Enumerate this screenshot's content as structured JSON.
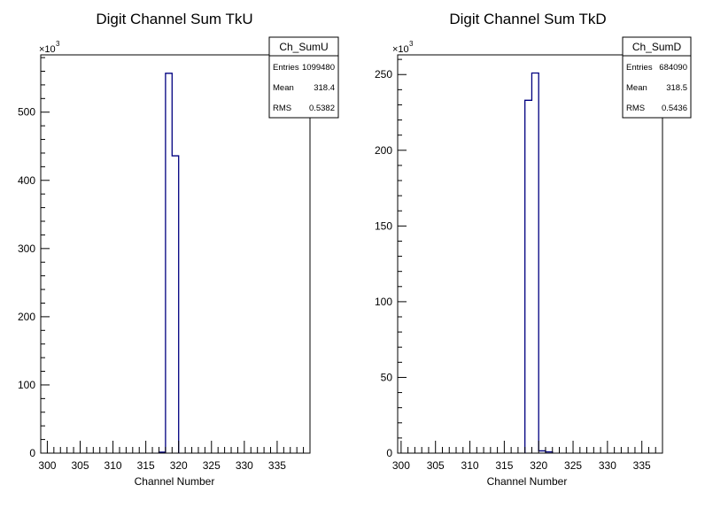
{
  "chart_data": [
    {
      "type": "bar",
      "title": "Digit Channel Sum TkU",
      "xlabel": "Channel Number",
      "ylabel": "",
      "y_multiplier": "×10",
      "y_multiplier_exp": "3",
      "xlim": [
        299,
        340
      ],
      "ylim": [
        0,
        584
      ],
      "xticks": [
        300,
        305,
        310,
        315,
        320,
        325,
        330,
        335
      ],
      "yticks": [
        0,
        100,
        200,
        300,
        400,
        500
      ],
      "bin_width": 1,
      "bins": [
        {
          "x": 317,
          "y": 1.5
        },
        {
          "x": 318,
          "y": 557
        },
        {
          "x": 319,
          "y": 436
        }
      ],
      "stats": {
        "name": "Ch_SumU",
        "rows": [
          {
            "label": "Entries",
            "value": "1099480"
          },
          {
            "label": "Mean",
            "value": "318.4"
          },
          {
            "label": "RMS",
            "value": "0.5382"
          }
        ]
      },
      "line_color": "#000080"
    },
    {
      "type": "bar",
      "title": "Digit Channel Sum TkD",
      "xlabel": "Channel Number",
      "ylabel": "",
      "y_multiplier": "×10",
      "y_multiplier_exp": "3",
      "xlim": [
        299.5,
        338
      ],
      "ylim": [
        0,
        263
      ],
      "xticks": [
        300,
        305,
        310,
        315,
        320,
        325,
        330,
        335
      ],
      "yticks": [
        0,
        50,
        100,
        150,
        200,
        250
      ],
      "bin_width": 1,
      "bins": [
        {
          "x": 318,
          "y": 233
        },
        {
          "x": 319,
          "y": 251
        },
        {
          "x": 320,
          "y": 1.5
        },
        {
          "x": 321,
          "y": 0.8
        }
      ],
      "stats": {
        "name": "Ch_SumD",
        "rows": [
          {
            "label": "Entries",
            "value": "684090"
          },
          {
            "label": "Mean",
            "value": "318.5"
          },
          {
            "label": "RMS",
            "value": "0.5436"
          }
        ]
      },
      "line_color": "#000080"
    }
  ]
}
